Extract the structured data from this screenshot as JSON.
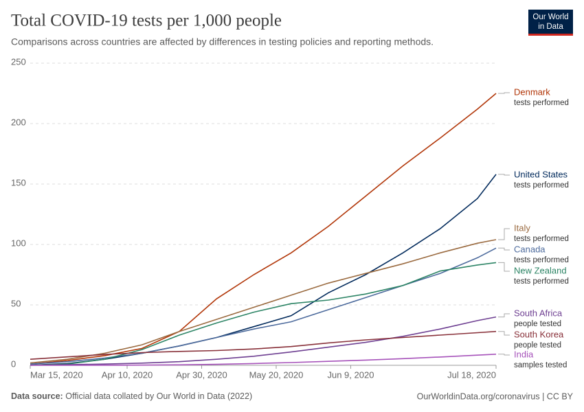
{
  "header": {
    "title": "Total COVID-19 tests per 1,000 people",
    "subtitle": "Comparisons across countries are affected by differences in testing policies and reporting methods.",
    "logo": [
      "Our World",
      "in Data"
    ]
  },
  "footer": {
    "source_label": "Data source:",
    "source": "Official data collated by Our World in Data (2022)",
    "url": "OurWorldinData.org/coronavirus | CC BY"
  },
  "chart_data": {
    "type": "line",
    "x": [
      "2020-03-15",
      "2020-03-25",
      "2020-04-04",
      "2020-04-14",
      "2020-04-24",
      "2020-05-04",
      "2020-05-14",
      "2020-05-24",
      "2020-06-03",
      "2020-06-13",
      "2020-06-23",
      "2020-07-03",
      "2020-07-13",
      "2020-07-18"
    ],
    "xlim": [
      "2020-03-15",
      "2020-07-18"
    ],
    "xticks": [
      {
        "value": "2020-03-15",
        "label": "Mar 15, 2020"
      },
      {
        "value": "2020-04-10",
        "label": "Apr 10, 2020"
      },
      {
        "value": "2020-04-30",
        "label": "Apr 30, 2020"
      },
      {
        "value": "2020-05-20",
        "label": "May 20, 2020"
      },
      {
        "value": "2020-06-09",
        "label": "Jun 9, 2020"
      },
      {
        "value": "2020-07-18",
        "label": "Jul 18, 2020"
      }
    ],
    "ylim": [
      0,
      250
    ],
    "yticks": [
      0,
      50,
      100,
      150,
      200,
      250
    ],
    "grid": true,
    "series": [
      {
        "name": "Denmark",
        "note": "tests performed",
        "color": "#b13507",
        "values": [
          1,
          4,
          8,
          14,
          28,
          55,
          75,
          93,
          115,
          140,
          165,
          188,
          212,
          225
        ]
      },
      {
        "name": "United States",
        "note": "tests performed",
        "color": "#00295b",
        "values": [
          0.1,
          1.5,
          5,
          10,
          16,
          23,
          32,
          41,
          60,
          75,
          93,
          113,
          138,
          158
        ]
      },
      {
        "name": "Italy",
        "note": "tests performed",
        "color": "#9a6a3f",
        "values": [
          2,
          5,
          10,
          17,
          28,
          38,
          48,
          58,
          68,
          76,
          84,
          93,
          101,
          104
        ]
      },
      {
        "name": "Canada",
        "note": "tests performed",
        "color": "#4c6a9c",
        "values": [
          1,
          3,
          6,
          10,
          16,
          23,
          30,
          36,
          46,
          56,
          66,
          76,
          89,
          97
        ]
      },
      {
        "name": "New Zealand",
        "note": "tests performed",
        "color": "#2c8465",
        "values": [
          0.1,
          1,
          5,
          13,
          25,
          35,
          44,
          51,
          54,
          59,
          66,
          78,
          83,
          85
        ]
      },
      {
        "name": "South Africa",
        "note": "people tested",
        "color": "#6d3e91",
        "values": [
          0.1,
          0.5,
          1,
          1.8,
          3,
          5,
          7.5,
          11,
          15,
          19,
          24,
          30,
          37,
          40
        ]
      },
      {
        "name": "South Korea",
        "note": "people tested",
        "color": "#883039",
        "values": [
          5,
          7,
          9,
          10.5,
          11.5,
          12.2,
          13.5,
          15.5,
          18.5,
          21,
          23,
          25,
          27,
          28
        ]
      },
      {
        "name": "India",
        "note": "samples tested",
        "color": "#a652ba",
        "values": [
          0,
          0.02,
          0.05,
          0.15,
          0.4,
          0.8,
          1.5,
          2.3,
          3.3,
          4.3,
          5.5,
          6.9,
          8.4,
          9.2
        ]
      }
    ]
  }
}
